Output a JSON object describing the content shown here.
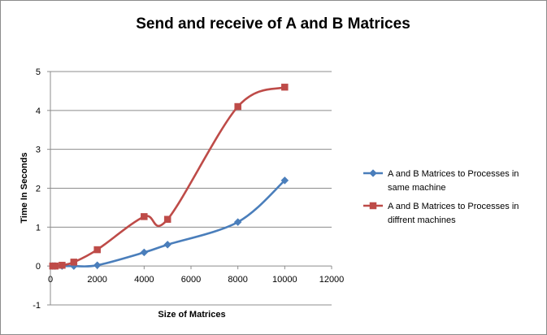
{
  "chart_data": {
    "type": "scatter",
    "title": "Send and receive of A and B Matrices",
    "xlabel": "Size of Matrices",
    "ylabel": "Time In Seconds",
    "xlim": [
      0,
      12000
    ],
    "ylim": [
      -1,
      5
    ],
    "xticks": [
      0,
      2000,
      4000,
      6000,
      8000,
      10000,
      12000
    ],
    "yticks": [
      -1,
      0,
      1,
      2,
      3,
      4,
      5
    ],
    "grid": "horizontal",
    "legend_position": "right",
    "smooth_lines": true,
    "series": [
      {
        "name": "A and B Matrices to Processes in same machine",
        "color": "#4a7ebb",
        "marker": "diamond",
        "x": [
          100,
          200,
          500,
          1000,
          2000,
          4000,
          5000,
          8000,
          10000
        ],
        "y": [
          0,
          0,
          0,
          0,
          0.02,
          0.35,
          0.55,
          1.13,
          2.2
        ]
      },
      {
        "name": "A and B Matrices to Processes in diffrent machines",
        "color": "#be4b48",
        "marker": "square",
        "x": [
          100,
          200,
          500,
          1000,
          2000,
          4000,
          5000,
          8000,
          10000
        ],
        "y": [
          0,
          0,
          0.02,
          0.1,
          0.42,
          1.27,
          1.2,
          4.1,
          4.6
        ]
      }
    ]
  }
}
